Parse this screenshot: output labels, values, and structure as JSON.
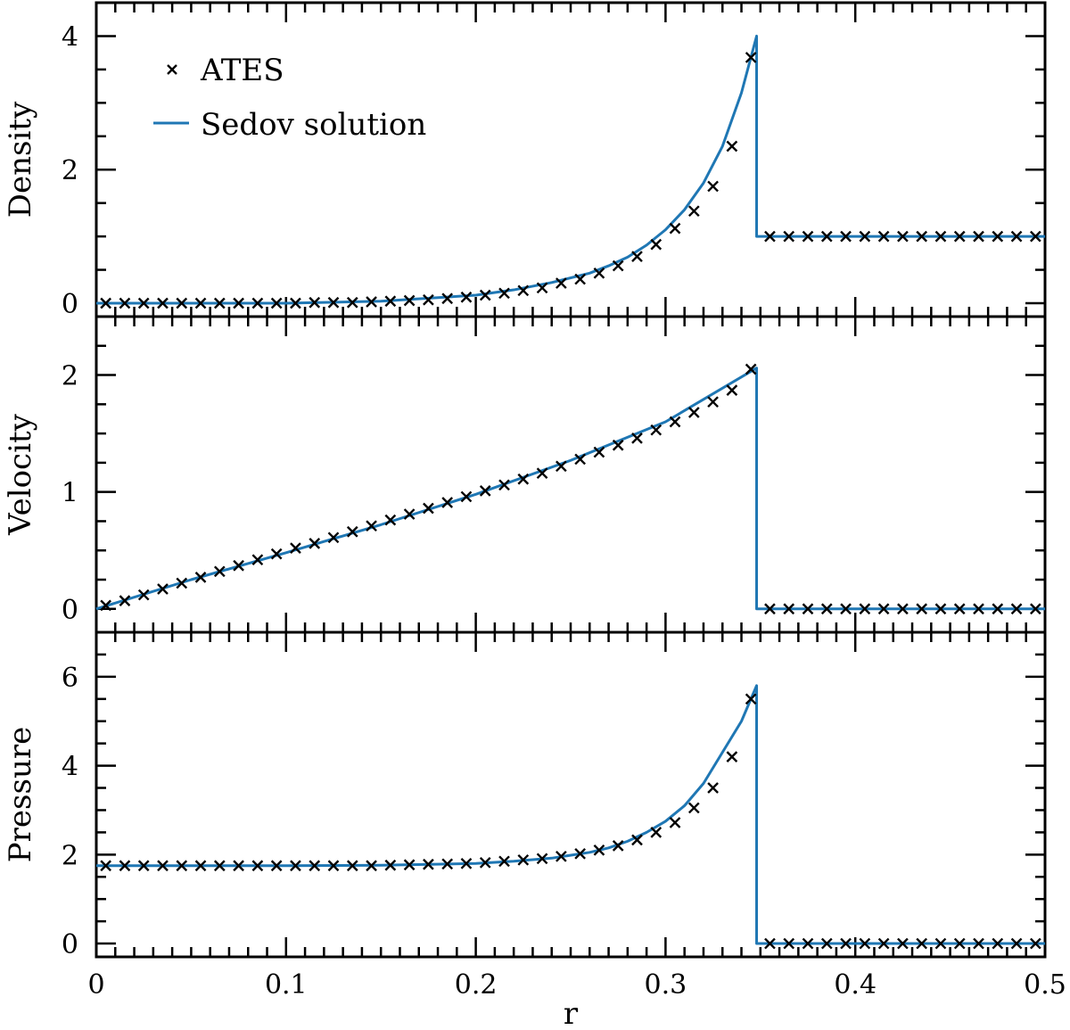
{
  "chart_data": {
    "type": "line",
    "xlabel": "r",
    "xlim": [
      0,
      0.5
    ],
    "x_tick_labels": [
      "0",
      "0.1",
      "0.2",
      "0.3",
      "0.4",
      "0.5"
    ],
    "x_ticks": [
      0,
      0.1,
      0.2,
      0.3,
      0.4,
      0.5
    ],
    "shock_radius": 0.348,
    "legend": {
      "placement": "top-left",
      "entries": [
        {
          "label": "ATES",
          "style": "marker-x"
        },
        {
          "label": "Sedov solution",
          "style": "line"
        }
      ]
    },
    "colors": {
      "solution": "#1f77b4",
      "markers": "#000000"
    },
    "panels": [
      {
        "name": "density",
        "ylabel": "Density",
        "ylim": [
          -0.2,
          4.5
        ],
        "y_tick_labels": [
          "0",
          "2",
          "4"
        ],
        "y_ticks": [
          0,
          2,
          4
        ],
        "y_minor_step": 0.5,
        "post_shock_value": 1.0,
        "sedov_solution": {
          "x": [
            0,
            0.05,
            0.1,
            0.15,
            0.2,
            0.22,
            0.24,
            0.26,
            0.27,
            0.28,
            0.29,
            0.3,
            0.31,
            0.32,
            0.33,
            0.34,
            0.348
          ],
          "y": [
            0.0,
            0.0,
            0.0,
            0.03,
            0.12,
            0.2,
            0.31,
            0.45,
            0.56,
            0.69,
            0.87,
            1.1,
            1.4,
            1.8,
            2.35,
            3.15,
            4.0
          ]
        },
        "ates_points": {
          "x": [
            0.005,
            0.015,
            0.025,
            0.035,
            0.045,
            0.055,
            0.065,
            0.075,
            0.085,
            0.095,
            0.105,
            0.115,
            0.125,
            0.135,
            0.145,
            0.155,
            0.165,
            0.175,
            0.185,
            0.195,
            0.205,
            0.215,
            0.225,
            0.235,
            0.245,
            0.255,
            0.265,
            0.275,
            0.285,
            0.295,
            0.305,
            0.315,
            0.325,
            0.335,
            0.345,
            0.355,
            0.365,
            0.375,
            0.385,
            0.395,
            0.405,
            0.415,
            0.425,
            0.435,
            0.445,
            0.455,
            0.465,
            0.475,
            0.485,
            0.495
          ],
          "y": [
            0.0,
            0.0,
            0.0,
            0.0,
            0.0,
            0.0,
            0.0,
            0.0,
            0.0,
            0.0,
            0.0,
            0.01,
            0.01,
            0.01,
            0.02,
            0.03,
            0.04,
            0.05,
            0.07,
            0.09,
            0.12,
            0.15,
            0.19,
            0.23,
            0.3,
            0.36,
            0.45,
            0.56,
            0.7,
            0.88,
            1.12,
            1.38,
            1.75,
            2.35,
            3.68,
            1.0,
            1.0,
            1.0,
            1.0,
            1.0,
            1.0,
            1.0,
            1.0,
            1.0,
            1.0,
            1.0,
            1.0,
            1.0,
            1.0,
            1.0
          ]
        }
      },
      {
        "name": "velocity",
        "ylabel": "Velocity",
        "ylim": [
          -0.2,
          2.5
        ],
        "y_tick_labels": [
          "0",
          "1",
          "2"
        ],
        "y_ticks": [
          0,
          1,
          2
        ],
        "y_minor_step": 0.25,
        "post_shock_value": 0.0,
        "sedov_solution": {
          "x": [
            0,
            0.05,
            0.1,
            0.15,
            0.2,
            0.25,
            0.3,
            0.348
          ],
          "y": [
            0.0,
            0.25,
            0.48,
            0.72,
            0.98,
            1.27,
            1.6,
            2.06
          ]
        },
        "ates_points": {
          "x": [
            0.005,
            0.015,
            0.025,
            0.035,
            0.045,
            0.055,
            0.065,
            0.075,
            0.085,
            0.095,
            0.105,
            0.115,
            0.125,
            0.135,
            0.145,
            0.155,
            0.165,
            0.175,
            0.185,
            0.195,
            0.205,
            0.215,
            0.225,
            0.235,
            0.245,
            0.255,
            0.265,
            0.275,
            0.285,
            0.295,
            0.305,
            0.315,
            0.325,
            0.335,
            0.345,
            0.355,
            0.365,
            0.375,
            0.385,
            0.395,
            0.405,
            0.415,
            0.425,
            0.435,
            0.445,
            0.455,
            0.465,
            0.475,
            0.485,
            0.495
          ],
          "y": [
            0.03,
            0.07,
            0.12,
            0.17,
            0.22,
            0.27,
            0.32,
            0.37,
            0.42,
            0.47,
            0.52,
            0.56,
            0.61,
            0.66,
            0.71,
            0.76,
            0.81,
            0.86,
            0.91,
            0.96,
            1.01,
            1.06,
            1.11,
            1.16,
            1.22,
            1.28,
            1.34,
            1.4,
            1.46,
            1.53,
            1.6,
            1.68,
            1.77,
            1.87,
            2.05,
            0.0,
            0.0,
            0.0,
            0.0,
            0.0,
            0.0,
            0.0,
            0.0,
            0.0,
            0.0,
            0.0,
            0.0,
            0.0,
            0.0,
            0.0
          ]
        }
      },
      {
        "name": "pressure",
        "ylabel": "Pressure",
        "ylim": [
          -0.3,
          7.0
        ],
        "y_tick_labels": [
          "0",
          "2",
          "4",
          "6"
        ],
        "y_ticks": [
          0,
          2,
          4,
          6
        ],
        "y_minor_step": 0.5,
        "post_shock_value": 0.0,
        "sedov_solution": {
          "x": [
            0,
            0.1,
            0.15,
            0.2,
            0.22,
            0.24,
            0.26,
            0.27,
            0.28,
            0.29,
            0.3,
            0.31,
            0.32,
            0.33,
            0.34,
            0.348
          ],
          "y": [
            1.75,
            1.75,
            1.76,
            1.8,
            1.85,
            1.92,
            2.05,
            2.15,
            2.3,
            2.5,
            2.75,
            3.1,
            3.6,
            4.3,
            5.0,
            5.8
          ]
        },
        "ates_points": {
          "x": [
            0.005,
            0.015,
            0.025,
            0.035,
            0.045,
            0.055,
            0.065,
            0.075,
            0.085,
            0.095,
            0.105,
            0.115,
            0.125,
            0.135,
            0.145,
            0.155,
            0.165,
            0.175,
            0.185,
            0.195,
            0.205,
            0.215,
            0.225,
            0.235,
            0.245,
            0.255,
            0.265,
            0.275,
            0.285,
            0.295,
            0.305,
            0.315,
            0.325,
            0.335,
            0.345,
            0.355,
            0.365,
            0.375,
            0.385,
            0.395,
            0.405,
            0.415,
            0.425,
            0.435,
            0.445,
            0.455,
            0.465,
            0.475,
            0.485,
            0.495
          ],
          "y": [
            1.75,
            1.75,
            1.75,
            1.75,
            1.75,
            1.75,
            1.75,
            1.75,
            1.75,
            1.75,
            1.75,
            1.75,
            1.75,
            1.75,
            1.75,
            1.76,
            1.77,
            1.78,
            1.79,
            1.8,
            1.82,
            1.85,
            1.88,
            1.91,
            1.96,
            2.02,
            2.1,
            2.2,
            2.33,
            2.5,
            2.72,
            3.05,
            3.5,
            4.2,
            5.5,
            0.0,
            0.0,
            0.0,
            0.0,
            0.0,
            0.0,
            0.0,
            0.0,
            0.0,
            0.0,
            0.0,
            0.0,
            0.0,
            0.0,
            0.0
          ]
        }
      }
    ]
  }
}
